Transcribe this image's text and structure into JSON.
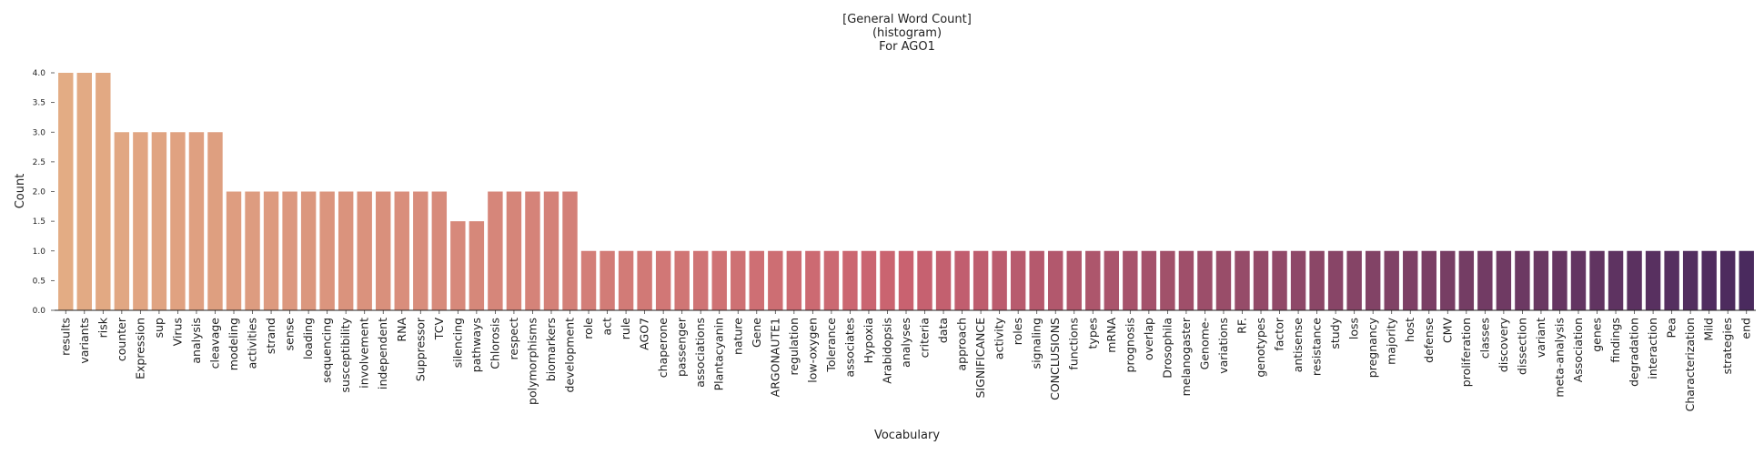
{
  "chart_data": {
    "type": "bar",
    "title_lines": [
      "[General Word Count]",
      "(histogram)",
      "For AGO1"
    ],
    "xlabel": "Vocabulary",
    "ylabel": "Count",
    "ylim": [
      0,
      4
    ],
    "yticks": [
      "0.0",
      "0.5",
      "1.0",
      "1.5",
      "2.0",
      "2.5",
      "3.0",
      "3.5",
      "4.0"
    ],
    "grid": false,
    "palette": "flare (light orange to dark purple)",
    "color_start": "#e3ac84",
    "color_end": "#4a2a5e",
    "categories": [
      "results",
      "variants",
      "risk",
      "counter",
      "Expression",
      "sup",
      "Virus",
      "analysis",
      "cleavage",
      "modeling",
      "activities",
      "strand",
      "sense",
      "loading",
      "sequencing",
      "susceptibility",
      "involvement",
      "independent",
      "RNA",
      "Suppressor",
      "TCV",
      "silencing",
      "pathways",
      "Chlorosis",
      "respect",
      "polymorphisms",
      "biomarkers",
      "development",
      "role",
      "act",
      "rule",
      "AGO7",
      "chaperone",
      "passenger",
      "associations",
      "Plantacyanin",
      "nature",
      "Gene",
      "ARGONAUTE1",
      "regulation",
      "low-oxygen",
      "Tolerance",
      "associates",
      "Hypoxia",
      "Arabidopsis",
      "analyses",
      "criteria",
      "data",
      "approach",
      "SIGNIFICANCE",
      "activity",
      "roles",
      "signaling",
      "CONCLUSIONS",
      "functions",
      "types",
      "mRNA",
      "prognosis",
      "overlap",
      "Drosophila",
      "melanogaster",
      "Genome-",
      "variations",
      "RF.",
      "genotypes",
      "factor",
      "antisense",
      "resistance",
      "study",
      "loss",
      "pregnancy",
      "majority",
      "host",
      "defense",
      "CMV",
      "proliferation",
      "classes",
      "discovery",
      "dissection",
      "variant",
      "meta-analysis",
      "Association",
      "genes",
      "findings",
      "degradation",
      "interaction",
      "Pea",
      "Characterization",
      "Mild",
      "strategies",
      "end"
    ],
    "values": [
      4,
      4,
      4,
      3,
      3,
      3,
      3,
      3,
      3,
      2,
      2,
      2,
      2,
      2,
      2,
      2,
      2,
      2,
      2,
      2,
      2,
      1.5,
      1.5,
      2,
      2,
      2,
      2,
      2,
      1,
      1,
      1,
      1,
      1,
      1,
      1,
      1,
      1,
      1,
      1,
      1,
      1,
      1,
      1,
      1,
      1,
      1,
      1,
      1,
      1,
      1,
      1,
      1,
      1,
      1,
      1,
      1,
      1,
      1,
      1,
      1,
      1,
      1,
      1,
      1,
      1,
      1,
      1,
      1,
      1,
      1,
      1,
      1,
      1,
      1,
      1,
      1,
      1,
      1,
      1,
      1,
      1,
      1,
      1,
      1,
      1,
      1,
      1,
      1,
      1,
      1,
      1
    ]
  }
}
